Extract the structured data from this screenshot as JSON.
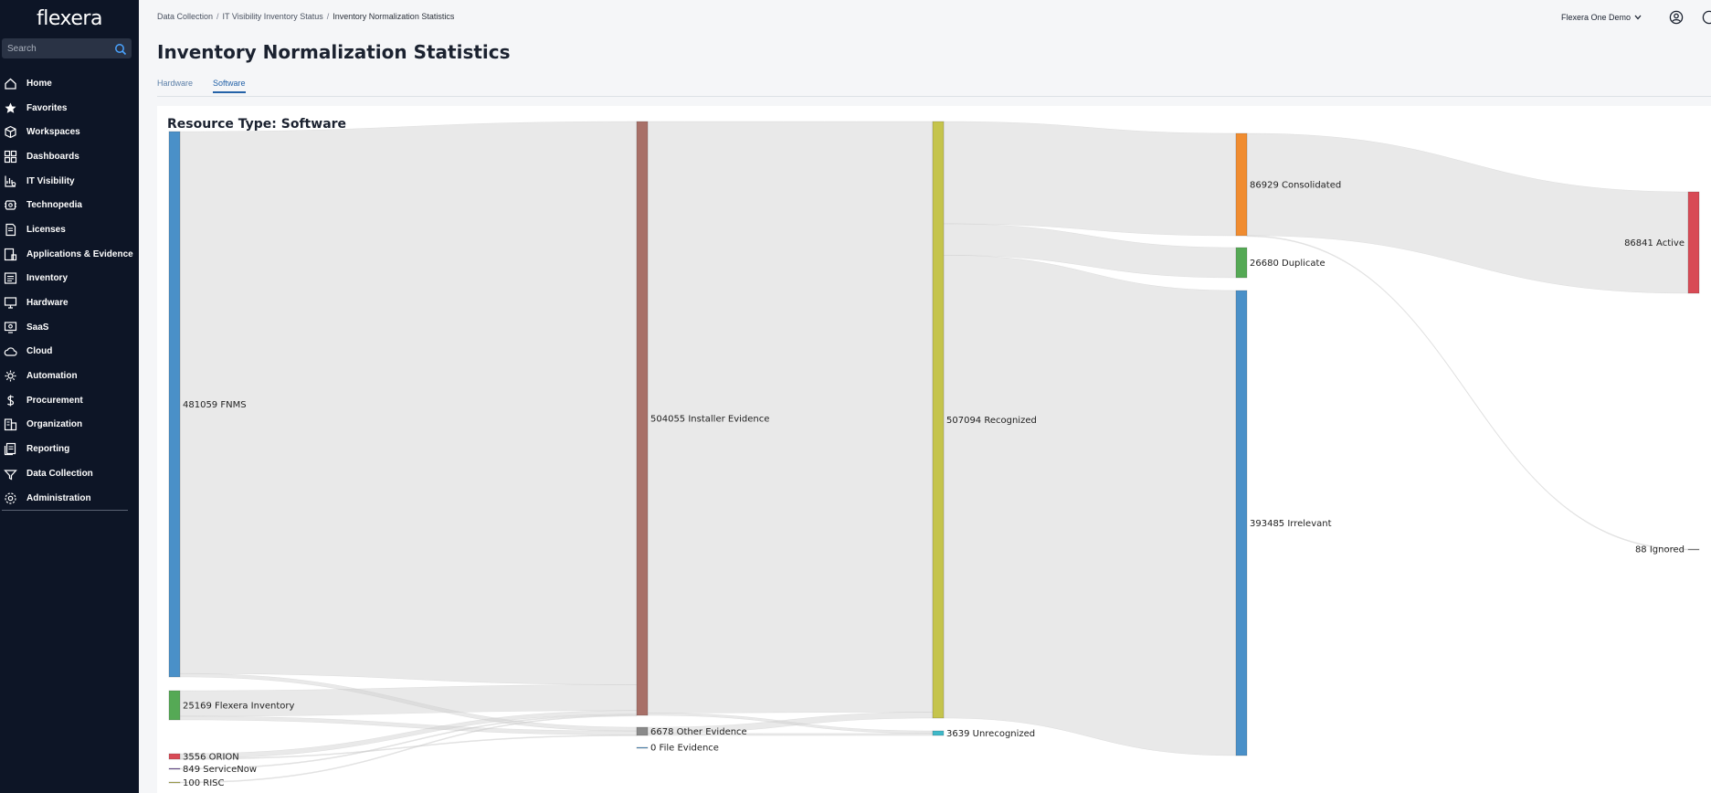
{
  "app": {
    "logo_text": "flexera",
    "search_placeholder": "Search"
  },
  "sidebar": {
    "items": [
      {
        "label": "Home",
        "icon": "home-icon"
      },
      {
        "label": "Favorites",
        "icon": "star-icon"
      },
      {
        "label": "Workspaces",
        "icon": "cube-icon"
      },
      {
        "label": "Dashboards",
        "icon": "dashboard-icon"
      },
      {
        "label": "IT Visibility",
        "icon": "chart-search-icon"
      },
      {
        "label": "Technopedia",
        "icon": "technopedia-icon"
      },
      {
        "label": "Licenses",
        "icon": "license-icon"
      },
      {
        "label": "Applications & Evidence",
        "icon": "applications-icon"
      },
      {
        "label": "Inventory",
        "icon": "inventory-icon"
      },
      {
        "label": "Hardware",
        "icon": "hardware-icon"
      },
      {
        "label": "SaaS",
        "icon": "saas-icon"
      },
      {
        "label": "Cloud",
        "icon": "cloud-icon"
      },
      {
        "label": "Automation",
        "icon": "automation-icon"
      },
      {
        "label": "Procurement",
        "icon": "dollar-icon"
      },
      {
        "label": "Organization",
        "icon": "organization-icon"
      },
      {
        "label": "Reporting",
        "icon": "reporting-icon"
      },
      {
        "label": "Data Collection",
        "icon": "data-collection-icon"
      },
      {
        "label": "Administration",
        "icon": "gear-icon"
      }
    ]
  },
  "header": {
    "breadcrumb": [
      "Data Collection",
      "IT Visibility Inventory Status",
      "Inventory Normalization Statistics"
    ],
    "org_name": "Flexera One Demo",
    "title": "Inventory Normalization Statistics"
  },
  "tabs": [
    {
      "label": "Hardware",
      "active": false
    },
    {
      "label": "Software",
      "active": true
    }
  ],
  "card": {
    "title": "Resource Type: Software"
  },
  "colors": {
    "sidebar_bg": "#0d1526",
    "accent": "#2563a8",
    "link": "#4a90d9",
    "link_fill": "#cfcfcf"
  },
  "chart_data": {
    "type": "sankey",
    "nodes": [
      {
        "id": "fnms",
        "label": "481059 FNMS",
        "value": 481059,
        "color": "#4a90c8",
        "column": 0
      },
      {
        "id": "flexinv",
        "label": "25169 Flexera Inventory",
        "value": 25169,
        "color": "#55a955",
        "column": 0
      },
      {
        "id": "orion",
        "label": "3556 ORION",
        "value": 3556,
        "color": "#d84a55",
        "column": 0
      },
      {
        "id": "servicenow",
        "label": "849 ServiceNow",
        "value": 849,
        "color": "#6d4c9a",
        "column": 0
      },
      {
        "id": "risc",
        "label": "100 RISC",
        "value": 100,
        "color": "#b5b551",
        "column": 0
      },
      {
        "id": "installer",
        "label": "504055 Installer Evidence",
        "value": 504055,
        "color": "#a87068",
        "column": 1
      },
      {
        "id": "other",
        "label": "6678 Other Evidence",
        "value": 6678,
        "color": "#8a8a8a",
        "column": 1
      },
      {
        "id": "file",
        "label": "0 File Evidence",
        "value": 0,
        "color": "#4a90c8",
        "column": 1
      },
      {
        "id": "recognized",
        "label": "507094 Recognized",
        "value": 507094,
        "color": "#c5c44c",
        "column": 2
      },
      {
        "id": "unrecognized",
        "label": "3639 Unrecognized",
        "value": 3639,
        "color": "#3fb8c8",
        "column": 2
      },
      {
        "id": "consolidated",
        "label": "86929 Consolidated",
        "value": 86929,
        "color": "#f08c30",
        "column": 3
      },
      {
        "id": "duplicate",
        "label": "26680 Duplicate",
        "value": 26680,
        "color": "#55a955",
        "column": 3
      },
      {
        "id": "irrelevant",
        "label": "393485 Irrelevant",
        "value": 393485,
        "color": "#4a90c8",
        "column": 3
      },
      {
        "id": "active",
        "label": "86841 Active",
        "value": 86841,
        "color": "#d84a55",
        "column": 4
      },
      {
        "id": "ignored",
        "label": "88 Ignored",
        "value": 88,
        "color": "#8a8a8a",
        "column": 4
      }
    ],
    "links": [
      {
        "source": "fnms",
        "target": "installer",
        "value": 478000
      },
      {
        "source": "fnms",
        "target": "other",
        "value": 3059
      },
      {
        "source": "flexinv",
        "target": "installer",
        "value": 22000
      },
      {
        "source": "flexinv",
        "target": "other",
        "value": 3169
      },
      {
        "source": "orion",
        "target": "installer",
        "value": 3106
      },
      {
        "source": "orion",
        "target": "other",
        "value": 450
      },
      {
        "source": "servicenow",
        "target": "installer",
        "value": 849
      },
      {
        "source": "risc",
        "target": "installer",
        "value": 100
      },
      {
        "source": "installer",
        "target": "recognized",
        "value": 502000
      },
      {
        "source": "installer",
        "target": "unrecognized",
        "value": 2055
      },
      {
        "source": "other",
        "target": "recognized",
        "value": 5094
      },
      {
        "source": "other",
        "target": "unrecognized",
        "value": 1584
      },
      {
        "source": "recognized",
        "target": "consolidated",
        "value": 86929
      },
      {
        "source": "recognized",
        "target": "duplicate",
        "value": 26680
      },
      {
        "source": "recognized",
        "target": "irrelevant",
        "value": 393485
      },
      {
        "source": "consolidated",
        "target": "active",
        "value": 86841
      },
      {
        "source": "consolidated",
        "target": "ignored",
        "value": 88
      }
    ]
  }
}
